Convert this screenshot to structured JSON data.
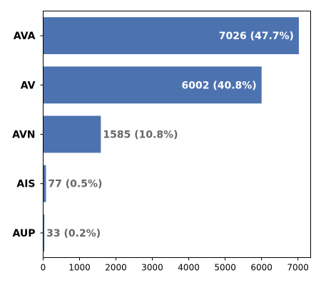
{
  "chart_data": {
    "type": "bar",
    "orientation": "horizontal",
    "title": "",
    "xlabel": "",
    "ylabel": "",
    "categories": [
      "AVA",
      "AV",
      "AVN",
      "AIS",
      "AUP"
    ],
    "values": [
      7026,
      6002,
      1585,
      77,
      33
    ],
    "data_labels": [
      "7026 (47.7%)",
      "6002 (40.8%)",
      "1585 (10.8%)",
      "77 (0.5%)",
      "33 (0.2%)"
    ],
    "label_inside": [
      true,
      true,
      false,
      false,
      false
    ],
    "xlim": [
      0,
      7350
    ],
    "xticks": [
      0,
      1000,
      2000,
      3000,
      4000,
      5000,
      6000,
      7000
    ],
    "grid": false,
    "colors": {
      "bar": "#4c72b0",
      "inside_label": "#ffffff",
      "outside_label": "#666666",
      "axis": "#000000"
    }
  }
}
